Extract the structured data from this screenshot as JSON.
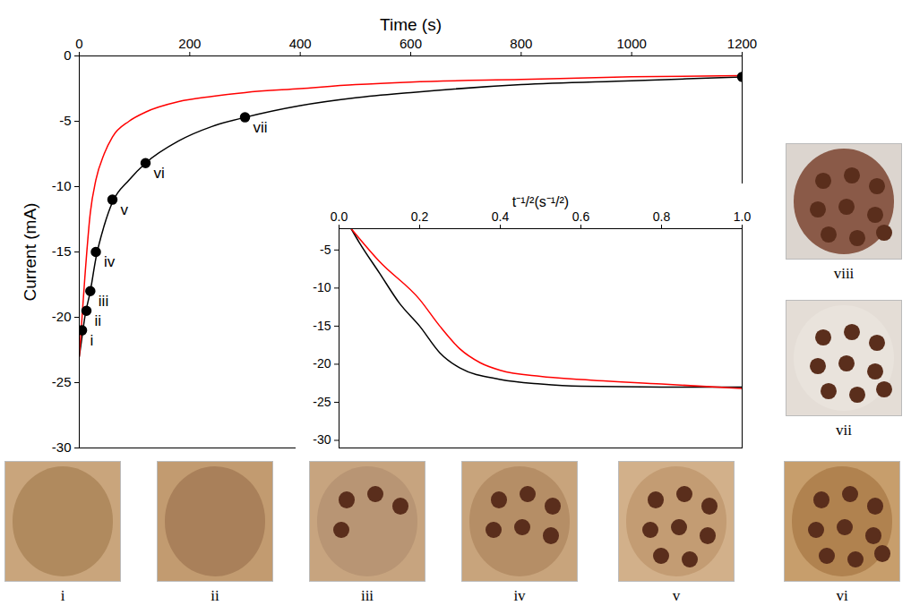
{
  "chart_data": [
    {
      "type": "line",
      "xlabel": "Time (s)",
      "ylabel": "Current (mA)",
      "xlim": [
        0,
        1200
      ],
      "xticks": [
        0,
        200,
        400,
        600,
        800,
        1000,
        1200
      ],
      "ylim": [
        -30,
        0
      ],
      "yticks": [
        -30,
        -25,
        -20,
        -15,
        -10,
        -5,
        0
      ],
      "series": [
        {
          "color": "#000000",
          "x": [
            0,
            5,
            10,
            20,
            30,
            45,
            60,
            90,
            120,
            180,
            240,
            300,
            400,
            500,
            600,
            800,
            1000,
            1200
          ],
          "values": [
            -23,
            -21.5,
            -20,
            -18,
            -15.5,
            -13,
            -11.2,
            -9.5,
            -8.2,
            -6.5,
            -5.4,
            -4.7,
            -3.8,
            -3.2,
            -2.8,
            -2.2,
            -1.9,
            -1.6
          ]
        },
        {
          "color": "#ff0000",
          "x": [
            0,
            5,
            10,
            20,
            30,
            45,
            60,
            90,
            120,
            180,
            240,
            300,
            400,
            500,
            600,
            800,
            1000,
            1200
          ],
          "values": [
            -23,
            -20,
            -17,
            -12,
            -9.5,
            -7.5,
            -6.2,
            -5,
            -4.3,
            -3.5,
            -3.1,
            -2.8,
            -2.5,
            -2.2,
            -2,
            -1.8,
            -1.6,
            -1.5
          ]
        },
        {
          "type": "scatter",
          "marker": "circle",
          "color": "#000000",
          "x": [
            5,
            13,
            20,
            30,
            60,
            120,
            300,
            1200
          ],
          "values": [
            -21,
            -19.5,
            -18,
            -15,
            -11,
            -8.2,
            -4.7,
            -1.6
          ],
          "labels": [
            "i",
            "ii",
            "iii",
            "iv",
            "v",
            "vi",
            "vii",
            null
          ]
        }
      ]
    },
    {
      "type": "line",
      "xlabel": "t⁻¹/²(s⁻¹/²)",
      "xlim": [
        0,
        1.0
      ],
      "xticks": [
        {
          "value": 0,
          "label": "0.0"
        },
        {
          "value": 0.2,
          "label": "0.2"
        },
        {
          "value": 0.4,
          "label": "0.4"
        },
        {
          "value": 0.6,
          "label": "0.6"
        },
        {
          "value": 0.8,
          "label": "0.8"
        },
        {
          "value": 1.0,
          "label": "1.0"
        }
      ],
      "ylim": [
        -31,
        -2.2
      ],
      "yticks": [
        -30,
        -25,
        -20,
        -15,
        -10,
        -5
      ],
      "series": [
        {
          "color": "#000000",
          "x": [
            0.03,
            0.05,
            0.1,
            0.15,
            0.2,
            0.25,
            0.3,
            0.4,
            0.5,
            0.6,
            0.8,
            1.0
          ],
          "values": [
            -2.2,
            -4,
            -8,
            -12,
            -15,
            -18.5,
            -20.5,
            -22,
            -22.6,
            -22.9,
            -23,
            -23
          ]
        },
        {
          "color": "#ff0000",
          "x": [
            0.03,
            0.1,
            0.2,
            0.25,
            0.3,
            0.35,
            0.4,
            0.5,
            0.6,
            0.8,
            1.0
          ],
          "values": [
            -2.2,
            -6.5,
            -11.5,
            -15,
            -18,
            -19.8,
            -20.8,
            -21.6,
            -22,
            -22.6,
            -23.2
          ]
        }
      ]
    }
  ],
  "images": {
    "labels": [
      "i",
      "ii",
      "iii",
      "iv",
      "v",
      "vi",
      "vii",
      "viii"
    ]
  }
}
